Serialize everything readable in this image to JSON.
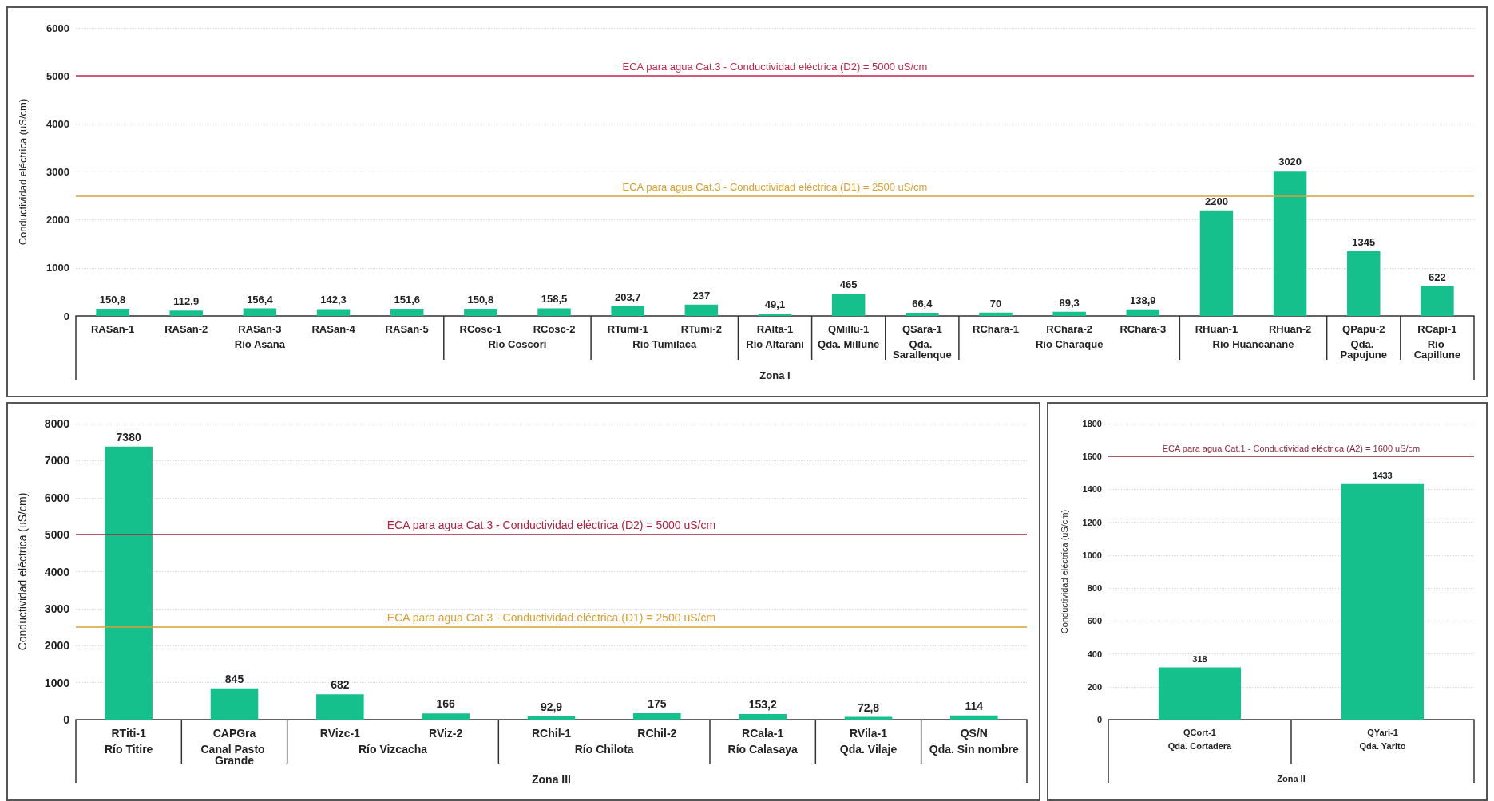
{
  "chart_data": [
    {
      "type": "bar",
      "ylabel": "Conductividad eléctrica (uS/cm)",
      "xlabel": "Zona I",
      "categories": [
        "RASan-1",
        "RASan-2",
        "RASan-3",
        "RASan-4",
        "RASan-5",
        "RCosc-1",
        "RCosc-2",
        "RTumi-1",
        "RTumi-2",
        "RAlta-1",
        "QMillu-1",
        "QSara-1",
        "RChara-1",
        "RChara-2",
        "RChara-3",
        "RHuan-1",
        "RHuan-2",
        "QPapu-2",
        "RCapi-1"
      ],
      "values": [
        150.8,
        112.9,
        156.4,
        142.3,
        151.6,
        150.8,
        158.5,
        203.7,
        237,
        49.1,
        465,
        66.4,
        70,
        89.3,
        138.9,
        2200,
        3020,
        1345,
        622
      ],
      "value_labels": [
        "150,8",
        "112,9",
        "156,4",
        "142,3",
        "151,6",
        "150,8",
        "158,5",
        "203,7",
        "237",
        "49,1",
        "465",
        "66,4",
        "70",
        "89,3",
        "138,9",
        "2200",
        "3020",
        "1345",
        "622"
      ],
      "color": "#16c08c",
      "ylim": [
        0,
        6000
      ],
      "yticks": [
        0,
        1000,
        2000,
        3000,
        4000,
        5000,
        6000
      ],
      "grid": "y",
      "ref_lines": [
        {
          "axis": "y",
          "value": 5000,
          "label": "ECA para agua Cat.3 - Conductividad eléctrica (D2) = 5000 uS/cm",
          "color": "#c0284a"
        },
        {
          "axis": "y",
          "value": 2500,
          "label": "ECA para agua Cat.3 - Conductividad eléctrica (D1) = 2500 uS/cm",
          "color": "#d9a030"
        }
      ],
      "annotations": [
        "Río Asana",
        "Río Coscori",
        "Río Tumilaca",
        "Río Altarani",
        "Qda. Millune",
        "Qda. Sarallenque",
        "Río Charaque",
        "Río Huancanane",
        "Qda. Papujune",
        "Río Capillune"
      ]
    },
    {
      "type": "bar",
      "ylabel": "Conductividad eléctrica (uS/cm)",
      "xlabel": "Zona III",
      "categories": [
        "RTiti-1",
        "CAPGra",
        "RVizc-1",
        "RViz-2",
        "RChil-1",
        "RChil-2",
        "RCala-1",
        "RVila-1",
        "QS/N"
      ],
      "values": [
        7380,
        845,
        682,
        166,
        92.9,
        175,
        153.2,
        72.8,
        114
      ],
      "value_labels": [
        "7380",
        "845",
        "682",
        "166",
        "92,9",
        "175",
        "153,2",
        "72,8",
        "114"
      ],
      "color": "#16c08c",
      "ylim": [
        0,
        8000
      ],
      "yticks": [
        0,
        1000,
        2000,
        3000,
        4000,
        5000,
        6000,
        7000,
        8000
      ],
      "grid": "y",
      "ref_lines": [
        {
          "axis": "y",
          "value": 5000,
          "label": "ECA para agua Cat.3 - Conductividad eléctrica (D2) = 5000 uS/cm",
          "color": "#b02040"
        },
        {
          "axis": "y",
          "value": 2500,
          "label": "ECA para agua Cat.3 - Conductividad eléctrica (D1) = 2500 uS/cm",
          "color": "#d9a030"
        }
      ],
      "annotations": [
        "Río Titire",
        "Canal Pasto Grande",
        "Río Vizcacha",
        "Río Chilota",
        "Río Calasaya",
        "Qda. Vilaje",
        "Qda. Sin nombre"
      ]
    },
    {
      "type": "bar",
      "ylabel": "Conductividad eléctrica (uS/cm)",
      "xlabel": "Zona II",
      "categories": [
        "QCort-1",
        "QYari-1"
      ],
      "values": [
        318,
        1433
      ],
      "data_labels": true,
      "color": "#16c08c",
      "ylim": [
        0,
        1800
      ],
      "yticks": [
        0,
        200,
        400,
        600,
        800,
        1000,
        1200,
        1400,
        1600,
        1800
      ],
      "grid": "y",
      "ref_lines": [
        {
          "axis": "y",
          "value": 1600,
          "label": "ECA para agua Cat.1 - Conductividad eléctrica (A2) = 1600 uS/cm",
          "color": "#8b2a3a"
        }
      ],
      "annotations": [
        "Qda. Cortadera",
        "Qda. Yarito"
      ]
    }
  ]
}
